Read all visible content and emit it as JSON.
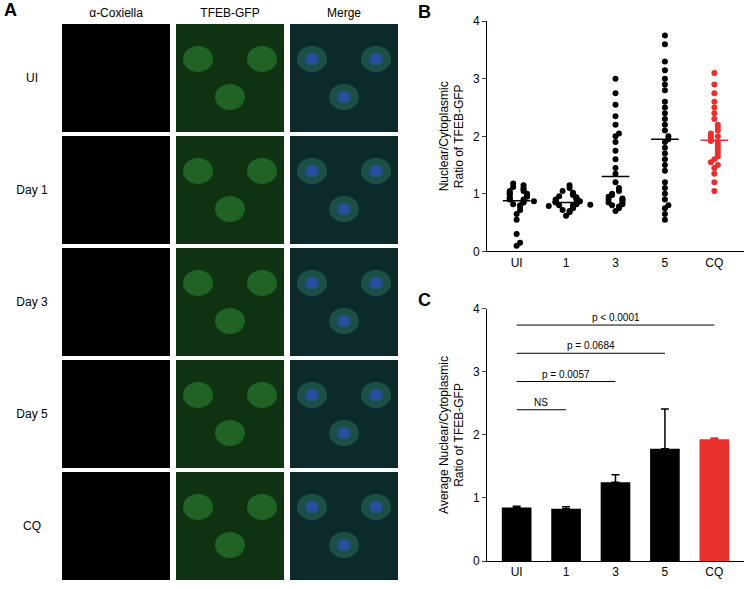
{
  "panel_a": {
    "label": "A",
    "columns": [
      "α-Coxiella",
      "TFEB-GFP",
      "Merge"
    ],
    "rows": [
      "UI",
      "Day 1",
      "Day 3",
      "Day 5",
      "CQ"
    ]
  },
  "chart_data": [
    {
      "label": "B",
      "type": "scatter",
      "ylabel": [
        "Nuclear/Cytoplasmic",
        "Ratio of TFEB-GFP"
      ],
      "categories": [
        "UI",
        "1",
        "3",
        "5",
        "CQ"
      ],
      "colors": [
        "#000000",
        "#000000",
        "#000000",
        "#000000",
        "#e8312f"
      ],
      "values": [
        [
          0.1,
          0.15,
          0.3,
          0.55,
          0.65,
          0.72,
          0.78,
          0.8,
          0.82,
          0.85,
          0.86,
          0.88,
          0.9,
          0.9,
          0.92,
          0.93,
          0.95,
          0.96,
          0.98,
          1.0,
          1.0,
          1.02,
          1.05,
          1.05,
          1.08,
          1.1,
          1.12,
          1.15,
          1.18,
          0.87
        ],
        [
          0.62,
          0.68,
          0.7,
          0.72,
          0.75,
          0.76,
          0.78,
          0.8,
          0.8,
          0.82,
          0.83,
          0.84,
          0.85,
          0.86,
          0.87,
          0.88,
          0.9,
          0.9,
          0.92,
          0.94,
          0.96,
          0.98,
          1.0,
          1.02,
          1.05,
          1.1,
          1.15,
          0.79,
          0.81
        ],
        [
          0.7,
          0.75,
          0.78,
          0.8,
          0.82,
          0.85,
          0.85,
          0.88,
          0.9,
          0.9,
          0.92,
          0.95,
          0.98,
          1.0,
          1.05,
          1.1,
          1.2,
          1.35,
          1.45,
          1.6,
          1.75,
          1.9,
          2.0,
          2.05,
          2.2,
          2.35,
          2.55,
          2.75,
          3.0
        ],
        [
          0.55,
          0.65,
          0.75,
          0.8,
          0.9,
          1.0,
          1.1,
          1.2,
          1.4,
          1.5,
          1.6,
          1.7,
          1.8,
          1.9,
          1.95,
          2.0,
          2.1,
          2.2,
          2.3,
          2.4,
          2.5,
          2.6,
          2.8,
          2.9,
          3.0,
          3.15,
          3.3,
          3.6,
          3.75
        ],
        [
          1.05,
          1.2,
          1.35,
          1.45,
          1.5,
          1.6,
          1.65,
          1.7,
          1.75,
          1.8,
          1.85,
          1.9,
          1.92,
          1.95,
          2.0,
          2.0,
          2.05,
          2.1,
          2.15,
          2.2,
          2.3,
          2.4,
          2.5,
          2.6,
          2.75,
          2.9,
          3.1,
          1.55
        ]
      ],
      "means": [
        0.88,
        0.85,
        1.3,
        1.95,
        1.93
      ],
      "ylim": [
        0,
        4
      ],
      "yticks": [
        0,
        1,
        2,
        3,
        4
      ],
      "grid": false
    },
    {
      "label": "C",
      "type": "bar",
      "ylabel": [
        "Average Nuclear/Cytoplasmic",
        "Ratio of TFEB-GFP"
      ],
      "categories": [
        "UI",
        "1",
        "3",
        "5",
        "CQ"
      ],
      "colors": [
        "#000000",
        "#000000",
        "#000000",
        "#000000",
        "#e8312f"
      ],
      "values": [
        0.85,
        0.83,
        1.25,
        1.78,
        1.93
      ],
      "errors": [
        0.02,
        0.03,
        0.12,
        0.63,
        0.02
      ],
      "comparisons": [
        {
          "from": "UI",
          "to": "1",
          "label": "NS"
        },
        {
          "from": "UI",
          "to": "3",
          "label": "p = 0.0057"
        },
        {
          "from": "UI",
          "to": "5",
          "label": "p = 0.0684"
        },
        {
          "from": "UI",
          "to": "CQ",
          "label": "p < 0.0001"
        }
      ],
      "ylim": [
        0,
        4
      ],
      "yticks": [
        0,
        1,
        2,
        3,
        4
      ],
      "grid": false
    }
  ]
}
